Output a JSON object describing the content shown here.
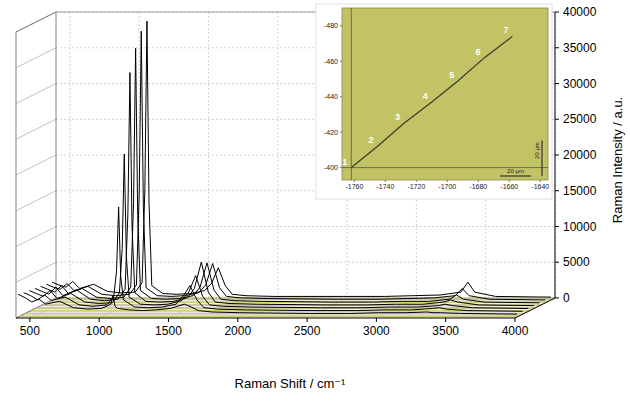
{
  "chart_data": {
    "type": "line",
    "x_label": "Raman Shift / cm⁻¹",
    "y_label": "Raman Intensity / a.u.",
    "xlim": [
      400,
      4000
    ],
    "xticks": [
      500,
      1000,
      1500,
      2000,
      2500,
      3000,
      3500,
      4000
    ],
    "ylim": [
      0,
      40000
    ],
    "yticks": [
      0,
      5000,
      10000,
      15000,
      20000,
      25000,
      30000,
      35000,
      40000
    ],
    "grid": true,
    "color": "#000000",
    "x": [
      400,
      450,
      500,
      550,
      600,
      700,
      800,
      900,
      1000,
      1050,
      1070,
      1085,
      1100,
      1120,
      1200,
      1300,
      1400,
      1500,
      1550,
      1600,
      1650,
      1700,
      1800,
      2000,
      2500,
      2800,
      3000,
      3200,
      3350,
      3400,
      3450,
      3600,
      4000
    ],
    "series": [
      {
        "values": [
          3200,
          2700,
          2100,
          2500,
          1800,
          2200,
          1300,
          1100,
          1200,
          1600,
          1800,
          3000,
          1500,
          1200,
          1000,
          900,
          1000,
          1200,
          1500,
          1800,
          1400,
          900,
          700,
          600,
          500,
          500,
          600,
          600,
          700,
          600,
          600,
          500,
          400
        ]
      },
      {
        "values": [
          3000,
          2600,
          2000,
          2700,
          1900,
          2400,
          1300,
          1100,
          1300,
          2500,
          6000,
          15000,
          5300,
          2000,
          1000,
          900,
          1000,
          1400,
          2500,
          4000,
          2000,
          900,
          700,
          600,
          500,
          500,
          600,
          600,
          800,
          900,
          700,
          500,
          400
        ]
      },
      {
        "values": [
          2900,
          2500,
          2100,
          2900,
          1800,
          2500,
          1300,
          1100,
          1200,
          2600,
          8800,
          22000,
          7700,
          2000,
          1000,
          900,
          1000,
          1500,
          2700,
          5000,
          2100,
          900,
          700,
          600,
          500,
          500,
          600,
          600,
          800,
          1000,
          800,
          500,
          400
        ]
      },
      {
        "values": [
          2800,
          2400,
          2000,
          3000,
          1800,
          2600,
          1300,
          1100,
          1300,
          2700,
          13200,
          33000,
          11500,
          2200,
          1000,
          900,
          1000,
          1500,
          2800,
          6500,
          2300,
          900,
          700,
          600,
          500,
          500,
          600,
          600,
          900,
          1200,
          900,
          500,
          400
        ]
      },
      {
        "values": [
          2700,
          2300,
          1900,
          2800,
          1700,
          2400,
          1200,
          1000,
          1200,
          2600,
          14400,
          36000,
          12600,
          2100,
          1000,
          900,
          1000,
          1400,
          2600,
          6000,
          2200,
          900,
          700,
          600,
          500,
          500,
          600,
          600,
          900,
          1500,
          900,
          500,
          400
        ]
      },
      {
        "values": [
          2600,
          2200,
          1900,
          2700,
          1700,
          2300,
          1200,
          1000,
          1200,
          2500,
          15200,
          38000,
          13300,
          2100,
          1000,
          900,
          1000,
          1400,
          2500,
          5500,
          2100,
          900,
          700,
          600,
          500,
          500,
          600,
          700,
          1000,
          2000,
          1000,
          500,
          400
        ]
      },
      {
        "values": [
          2500,
          2100,
          1800,
          2600,
          1600,
          2200,
          1200,
          1000,
          1100,
          2400,
          15600,
          39000,
          13600,
          2000,
          900,
          800,
          900,
          1300,
          2300,
          4500,
          2000,
          800,
          600,
          500,
          500,
          500,
          600,
          700,
          1100,
          2500,
          1100,
          500,
          400
        ]
      }
    ],
    "inset": {
      "xlim": [
        -1768,
        -1635
      ],
      "ylim": [
        -393,
        -490
      ],
      "xticks": [
        -1760,
        -1740,
        -1720,
        -1700,
        -1680,
        -1660,
        -1640
      ],
      "yticks": [
        -400,
        -420,
        -440,
        -460,
        -480
      ],
      "points": [
        {
          "label": "1",
          "x": -1762,
          "y": -400
        },
        {
          "label": "2",
          "x": -1745,
          "y": -412
        },
        {
          "label": "3",
          "x": -1728,
          "y": -425
        },
        {
          "label": "4",
          "x": -1710,
          "y": -437
        },
        {
          "label": "5",
          "x": -1693,
          "y": -449
        },
        {
          "label": "6",
          "x": -1676,
          "y": -462
        },
        {
          "label": "7",
          "x": -1658,
          "y": -474
        }
      ],
      "scale_bar": {
        "length": 20,
        "label": "20 µm"
      }
    }
  }
}
